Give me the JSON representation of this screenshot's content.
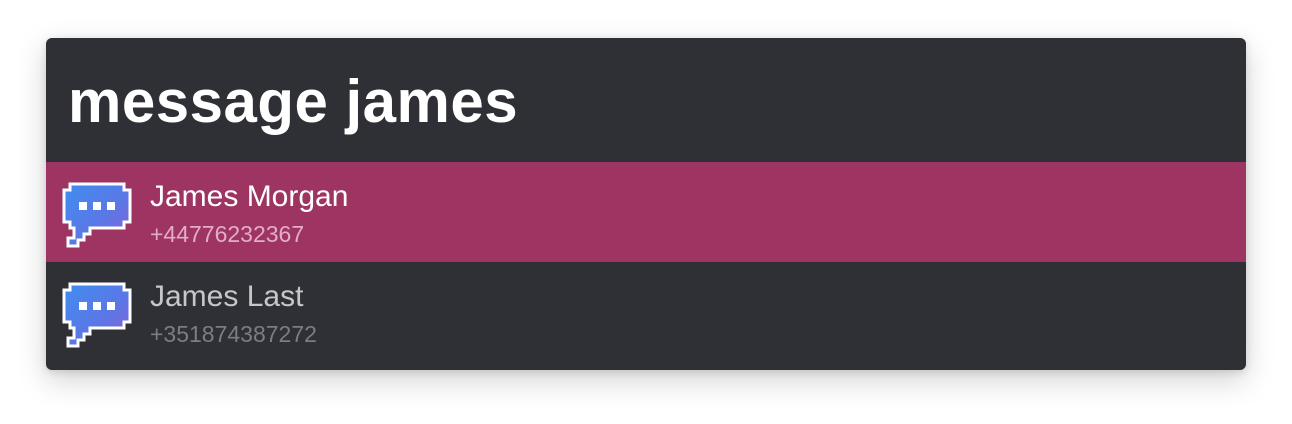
{
  "launcher": {
    "query": "message james",
    "selected_color": "#9e3462",
    "background_color": "#2f3035",
    "results": [
      {
        "title": "James Morgan",
        "subtitle": "+44776232367",
        "icon": "message-bubble-icon",
        "selected": true
      },
      {
        "title": "James Last",
        "subtitle": "+351874387272",
        "icon": "message-bubble-icon",
        "selected": false
      }
    ]
  }
}
